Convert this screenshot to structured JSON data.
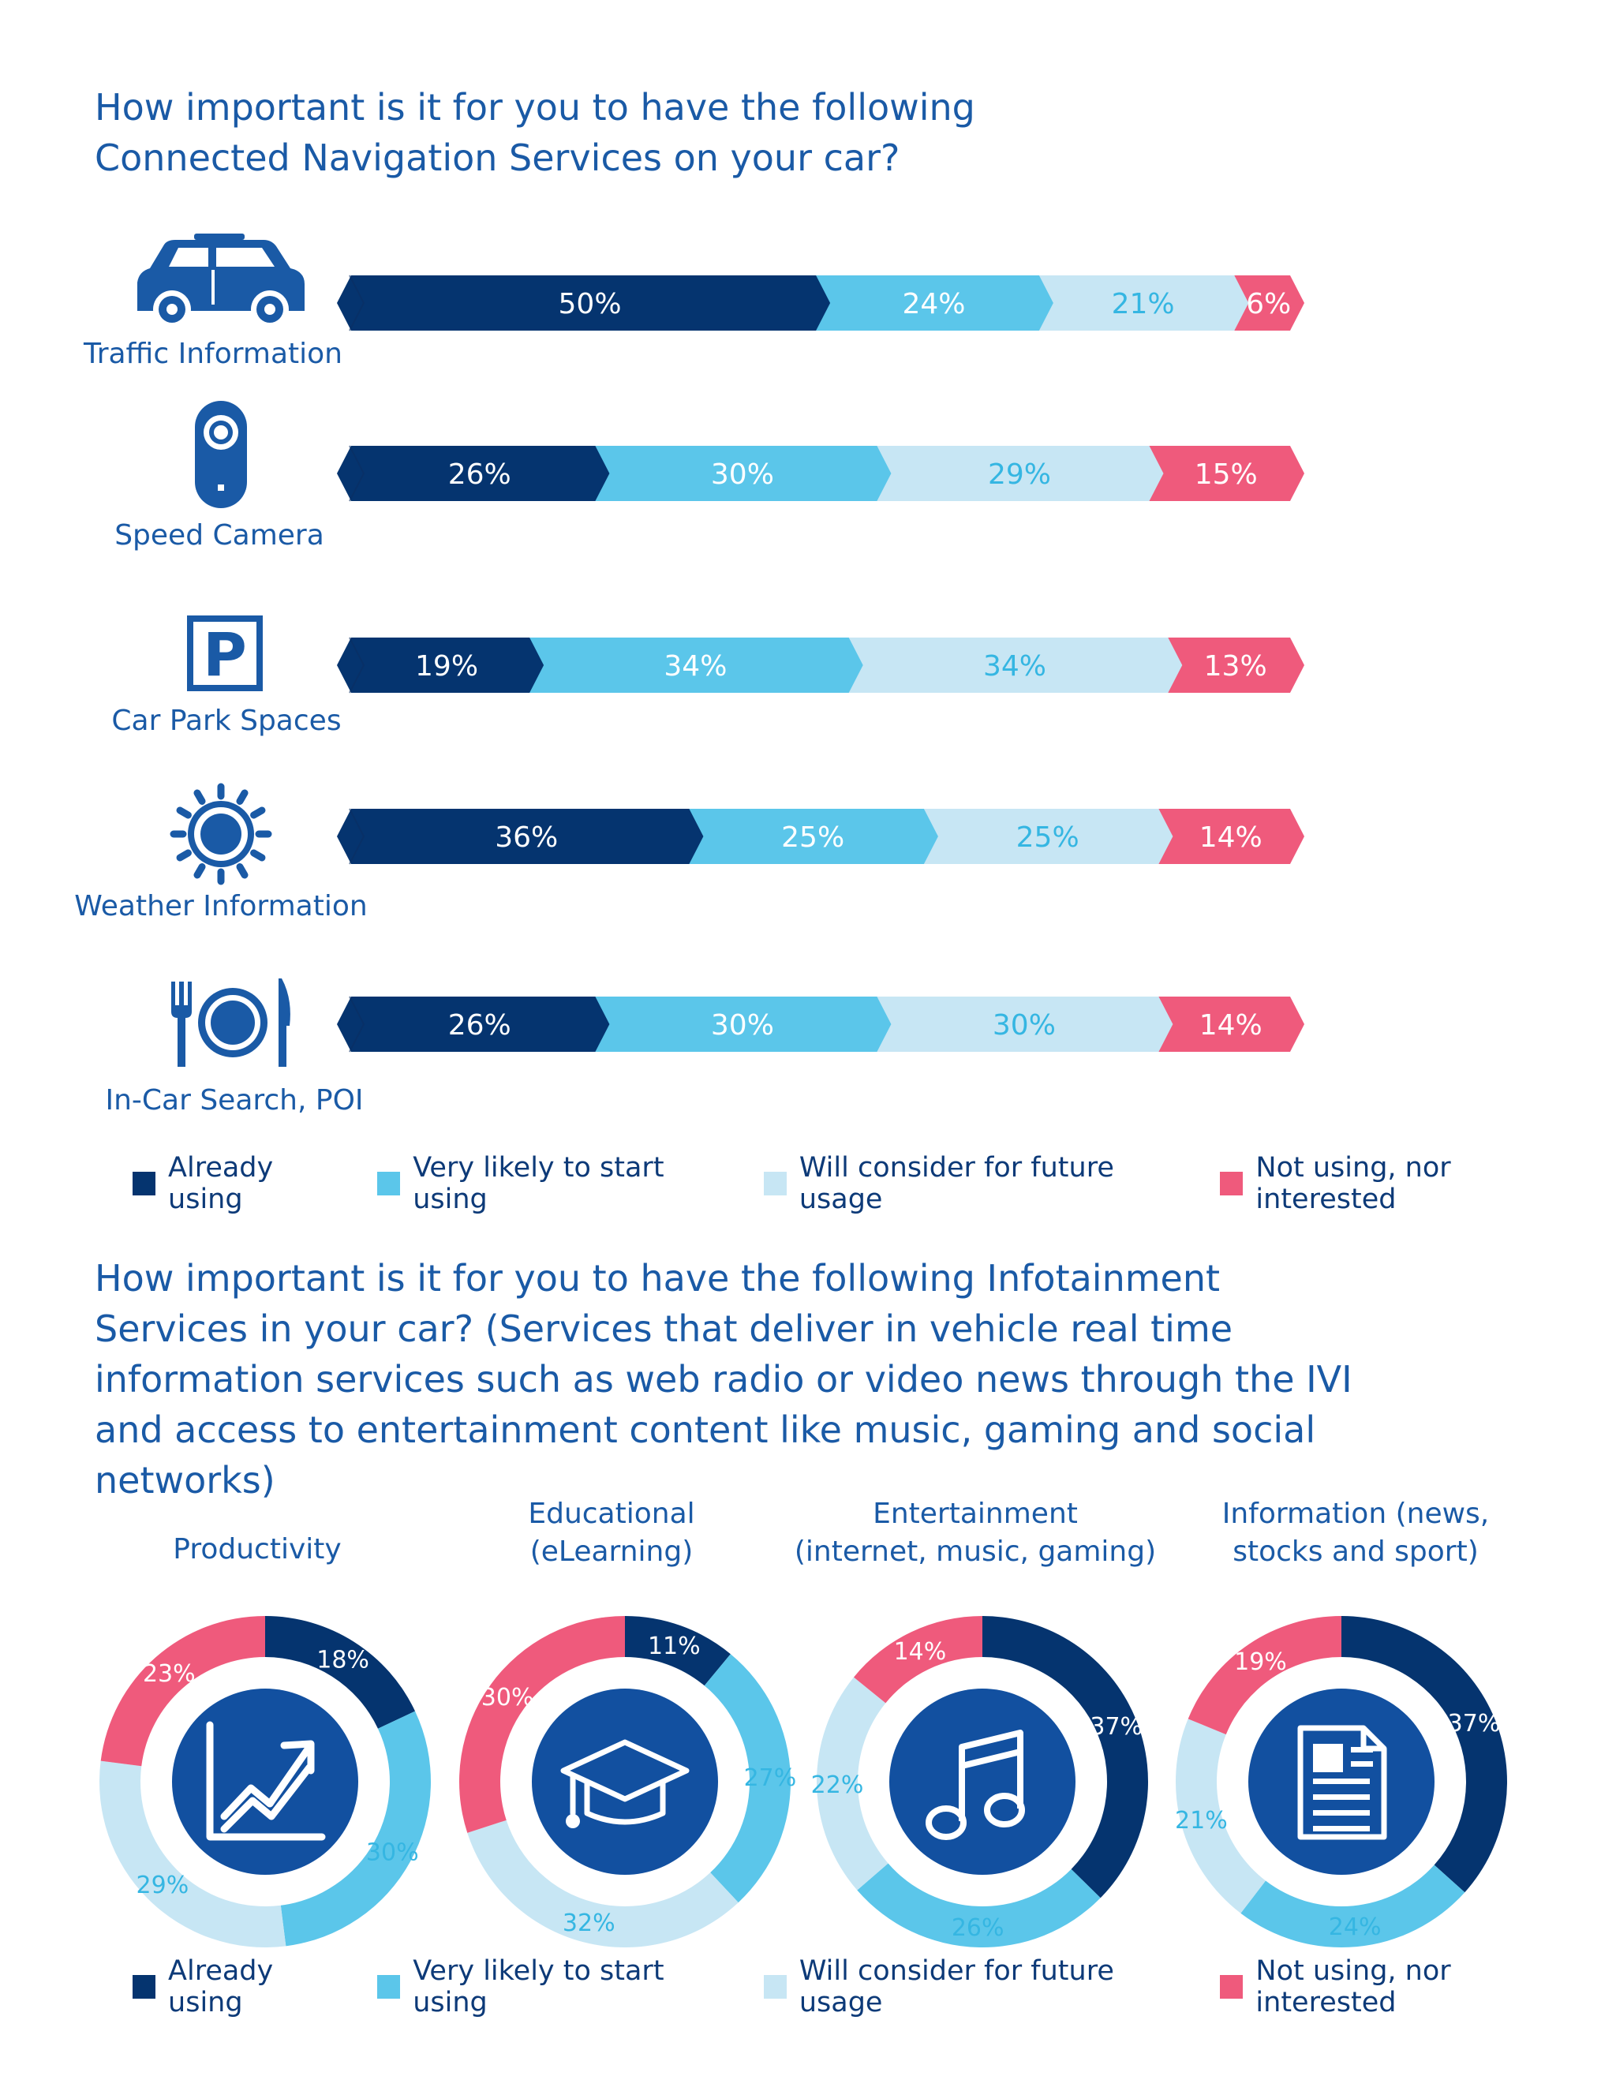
{
  "colors": {
    "already": "#05346f",
    "likely": "#5bc6ea",
    "consider": "#c7e6f4",
    "not": "#ef5a7c",
    "icon": "#1a5aa6",
    "circle": "#1250a0"
  },
  "nav": {
    "title": "How important is it for you to have the following Connected Navigation Services on your car?",
    "legend": [
      "Already using",
      "Very likely to start using",
      "Will consider for future usage",
      "Not using, nor interested"
    ]
  },
  "info": {
    "title": "How important is it for you to have the following Infotainment Services in your car? (Services that deliver in vehicle real time information services such as web radio or video news through the IVI and access to entertainment content like music, gaming and social networks)",
    "legend": [
      "Already using",
      "Very likely to start using",
      "Will consider for future usage",
      "Not using, nor interested"
    ]
  },
  "chart_data": [
    {
      "type": "bar",
      "orientation": "horizontal",
      "stacked": true,
      "categories": [
        "Traffic Information",
        "Speed Camera",
        "Car Park Spaces",
        "Weather Information",
        "In-Car Search, POI"
      ],
      "icons": [
        "car-icon",
        "speed-camera-icon",
        "parking-icon",
        "sun-icon",
        "plate-cutlery-icon"
      ],
      "series": [
        {
          "name": "Already using",
          "values": [
            50,
            26,
            19,
            36,
            26
          ]
        },
        {
          "name": "Very likely to start using",
          "values": [
            24,
            30,
            34,
            25,
            30
          ]
        },
        {
          "name": "Will consider for future usage",
          "values": [
            21,
            29,
            34,
            25,
            30
          ]
        },
        {
          "name": "Not using, nor interested",
          "values": [
            6,
            15,
            13,
            14,
            14
          ]
        }
      ],
      "labels": [
        [
          "50%",
          "24%",
          "21%",
          "6%"
        ],
        [
          "26%",
          "30%",
          "29%",
          "15%"
        ],
        [
          "19%",
          "34%",
          "34%",
          "13%"
        ],
        [
          "36%",
          "25%",
          "25%",
          "14%"
        ],
        [
          "26%",
          "30%",
          "30%",
          "14%"
        ]
      ],
      "legend_position": "bottom"
    },
    {
      "type": "pie",
      "style": "donut",
      "charts": [
        {
          "title": [
            "Productivity"
          ],
          "icon": "chart-growth-icon",
          "values": [
            18,
            30,
            29,
            23
          ],
          "labels": [
            "18%",
            "30%",
            "29%",
            "23%"
          ]
        },
        {
          "title": [
            "Educational",
            "(eLearning)"
          ],
          "icon": "graduation-cap-icon",
          "values": [
            11,
            27,
            32,
            30
          ],
          "labels": [
            "11%",
            "27%",
            "32%",
            "30%"
          ]
        },
        {
          "title": [
            "Entertainment",
            "(internet, music, gaming)"
          ],
          "icon": "music-note-icon",
          "values": [
            37,
            26,
            22,
            14
          ],
          "labels": [
            "37%",
            "26%",
            "22%",
            "14%"
          ]
        },
        {
          "title": [
            "Information (news,",
            "stocks and sport)"
          ],
          "icon": "document-icon",
          "values": [
            37,
            24,
            21,
            19
          ],
          "labels": [
            "37%",
            "24%",
            "21%",
            "19%"
          ]
        }
      ],
      "series_names": [
        "Already using",
        "Very likely to start using",
        "Will consider for future usage",
        "Not using, nor interested"
      ],
      "legend_position": "bottom"
    }
  ]
}
